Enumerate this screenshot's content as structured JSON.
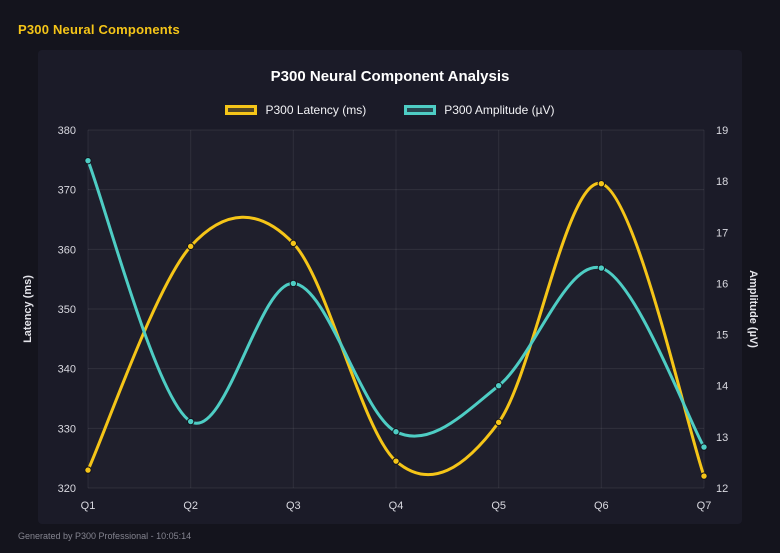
{
  "header": {
    "title": "P300 Neural Components"
  },
  "footer": {
    "text": "Generated by P300 Professional - 10:05:14"
  },
  "colors": {
    "background": "#14141d",
    "accent_yellow": "#f5c518",
    "accent_teal": "#4ecdc4"
  },
  "chart_data": {
    "type": "line",
    "title": "P300 Neural Component Analysis",
    "categories": [
      "Q1",
      "Q2",
      "Q3",
      "Q4",
      "Q5",
      "Q6",
      "Q7"
    ],
    "series": [
      {
        "name": "P300 Latency (ms)",
        "axis": "left",
        "color": "#f5c518",
        "values": [
          323,
          360.5,
          361,
          324.5,
          331,
          371,
          322
        ]
      },
      {
        "name": "P300 Amplitude (µV)",
        "axis": "right",
        "color": "#4ecdc4",
        "values": [
          18.4,
          13.3,
          16.0,
          13.1,
          14.0,
          16.3,
          12.8
        ]
      }
    ],
    "left_axis": {
      "label": "Latency (ms)",
      "min": 320,
      "max": 380,
      "step": 10
    },
    "right_axis": {
      "label": "Amplitude (µV)",
      "min": 12,
      "max": 19,
      "step": 1
    },
    "grid": true,
    "legend_position": "top",
    "line_style": "smooth"
  }
}
